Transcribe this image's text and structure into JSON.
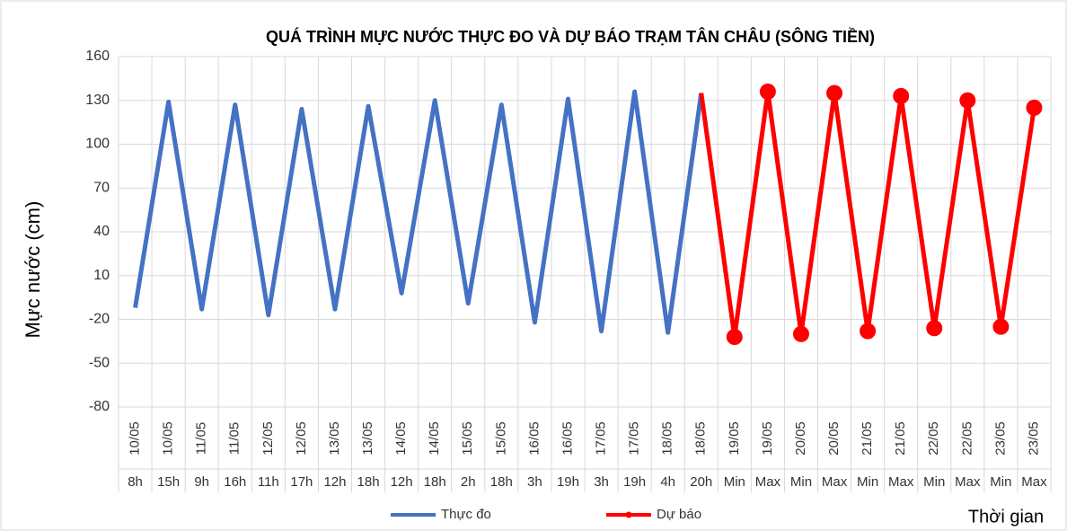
{
  "chart_data": {
    "type": "line",
    "title": "QUÁ TRÌNH MỰC NƯỚC THỰC ĐO VÀ DỰ BÁO TRẠM TÂN CHÂU (SÔNG TIỀN)",
    "y_label": "Mực nước (cm)",
    "x_label": "Thời gian",
    "categories": [
      [
        "10/05",
        "8h"
      ],
      [
        "10/05",
        "15h"
      ],
      [
        "11/05",
        "9h"
      ],
      [
        "11/05",
        "16h"
      ],
      [
        "12/05",
        "11h"
      ],
      [
        "12/05",
        "17h"
      ],
      [
        "13/05",
        "12h"
      ],
      [
        "13/05",
        "18h"
      ],
      [
        "14/05",
        "12h"
      ],
      [
        "14/05",
        "18h"
      ],
      [
        "15/05",
        "2h"
      ],
      [
        "15/05",
        "18h"
      ],
      [
        "16/05",
        "3h"
      ],
      [
        "16/05",
        "19h"
      ],
      [
        "17/05",
        "3h"
      ],
      [
        "17/05",
        "19h"
      ],
      [
        "18/05",
        "4h"
      ],
      [
        "18/05",
        "20h"
      ],
      [
        "19/05",
        "Min"
      ],
      [
        "19/05",
        "Max"
      ],
      [
        "20/05",
        "Min"
      ],
      [
        "20/05",
        "Max"
      ],
      [
        "21/05",
        "Min"
      ],
      [
        "21/05",
        "Max"
      ],
      [
        "22/05",
        "Min"
      ],
      [
        "22/05",
        "Max"
      ],
      [
        "23/05",
        "Min"
      ],
      [
        "23/05",
        "Max"
      ]
    ],
    "series": [
      {
        "name": "Thực đo",
        "color": "#4472c4",
        "marker": false,
        "values": [
          -12,
          129,
          -13,
          127,
          -17,
          124,
          -13,
          126,
          -2,
          130,
          -9,
          127,
          -22,
          131,
          -28,
          136,
          -29,
          135,
          null,
          null,
          null,
          null,
          null,
          null,
          null,
          null,
          null,
          null
        ]
      },
      {
        "name": "Dự báo",
        "color": "#ff0000",
        "marker": true,
        "values": [
          null,
          null,
          null,
          null,
          null,
          null,
          null,
          null,
          null,
          null,
          null,
          null,
          null,
          null,
          null,
          null,
          null,
          135,
          -32,
          136,
          -30,
          135,
          -28,
          133,
          -26,
          130,
          -25,
          125
        ]
      }
    ],
    "ylim": [
      -80,
      160
    ],
    "yticks": [
      -80,
      -50,
      -20,
      10,
      40,
      70,
      100,
      130,
      160
    ],
    "grid": true
  }
}
